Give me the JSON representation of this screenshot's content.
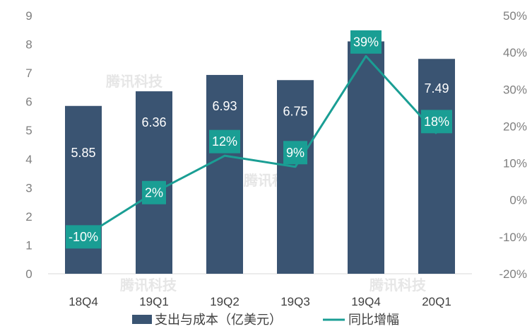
{
  "chart_data": {
    "type": "bar",
    "categories": [
      "18Q4",
      "19Q1",
      "19Q2",
      "19Q3",
      "19Q4",
      "20Q1"
    ],
    "series": [
      {
        "name": "支出与成本（亿美元）",
        "type": "bar",
        "axis": "left",
        "values": [
          5.85,
          6.36,
          6.93,
          6.75,
          8.1,
          7.49
        ],
        "labels": [
          "5.85",
          "6.36",
          "6.93",
          "6.75",
          "",
          "7.49"
        ],
        "color": "#3a5472"
      },
      {
        "name": "同比增幅",
        "type": "line",
        "axis": "right",
        "values": [
          -10,
          2,
          12,
          9,
          39,
          18
        ],
        "labels": [
          "-10%",
          "2%",
          "12%",
          "9%",
          "39%",
          "18%"
        ],
        "color": "#1a9e94"
      }
    ],
    "ylim_left": [
      0,
      9
    ],
    "yticks_left": [
      "0",
      "1",
      "2",
      "3",
      "4",
      "5",
      "6",
      "7",
      "8",
      "9"
    ],
    "ylim_right": [
      -20,
      50
    ],
    "yticks_right": [
      "-20%",
      "-10%",
      "0%",
      "10%",
      "20%",
      "30%",
      "40%",
      "50%"
    ],
    "legend": [
      "支出与成本（亿美元）",
      "同比增幅"
    ],
    "legend_position": "bottom",
    "watermark": "腾讯科技"
  }
}
